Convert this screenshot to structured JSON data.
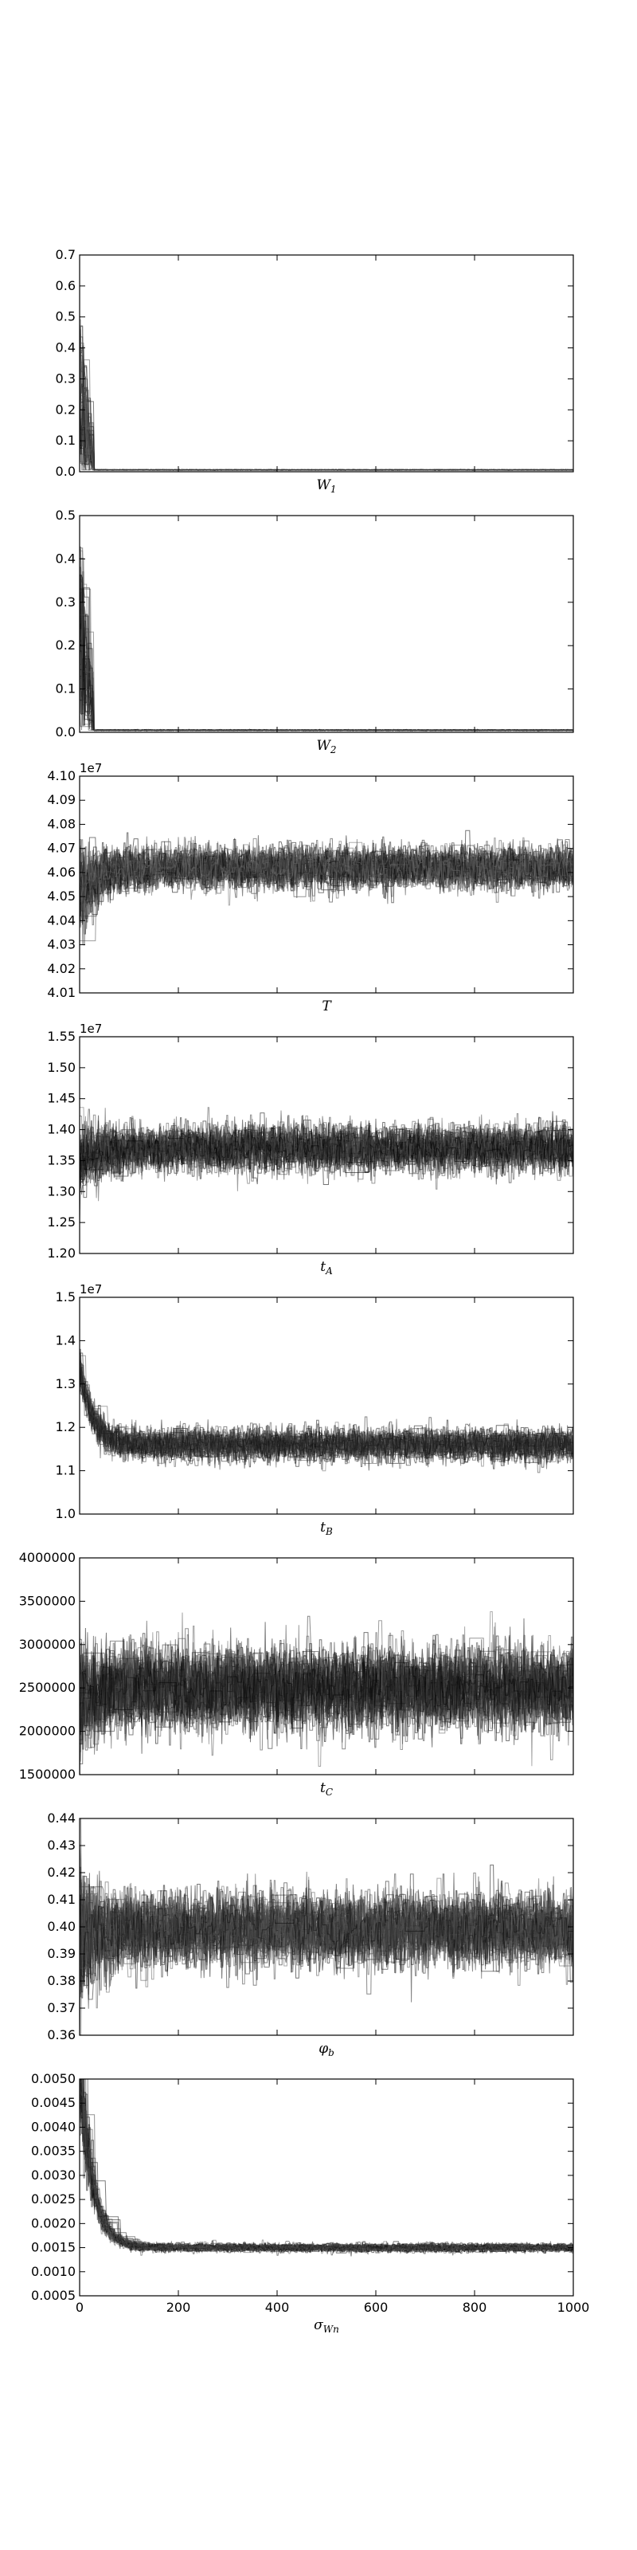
{
  "chart_data": [
    {
      "type": "line",
      "xlabel": "W1",
      "ylim": [
        0.0,
        0.7
      ],
      "yticks": [
        "0.0",
        "0.1",
        "0.2",
        "0.3",
        "0.4",
        "0.5",
        "0.6",
        "0.7"
      ],
      "offset": "",
      "xlim": [
        0,
        1000
      ],
      "pattern": "spike-decay",
      "steady": 0.006,
      "noise": 0.002,
      "early_max": 0.52,
      "early_len": 30,
      "series_count": 40
    },
    {
      "type": "line",
      "xlabel": "W2",
      "ylim": [
        0.0,
        0.5
      ],
      "yticks": [
        "0.0",
        "0.1",
        "0.2",
        "0.3",
        "0.4",
        "0.5"
      ],
      "offset": "",
      "xlim": [
        0,
        1000
      ],
      "pattern": "spike-decay",
      "steady": 0.005,
      "noise": 0.002,
      "early_max": 0.47,
      "early_len": 30,
      "series_count": 40
    },
    {
      "type": "line",
      "xlabel": "T",
      "ylim": [
        40100000,
        41000000
      ],
      "yticks": [
        "4.01",
        "4.02",
        "4.03",
        "4.04",
        "4.05",
        "4.06",
        "4.07",
        "4.08",
        "4.09",
        "4.10"
      ],
      "offset": "1e7",
      "xlim": [
        0,
        1000
      ],
      "pattern": "stationary",
      "center": 40620000,
      "spread": 120000,
      "start_center": 40520000,
      "start_spread": 250000,
      "series_count": 40
    },
    {
      "type": "line",
      "xlabel": "tA",
      "ylim": [
        12000000,
        15500000
      ],
      "yticks": [
        "1.20",
        "1.25",
        "1.30",
        "1.35",
        "1.40",
        "1.45",
        "1.50",
        "1.55"
      ],
      "offset": "1e7",
      "xlim": [
        0,
        1000
      ],
      "pattern": "stationary",
      "center": 13700000,
      "spread": 500000,
      "start_center": 13500000,
      "start_spread": 900000,
      "series_count": 40
    },
    {
      "type": "line",
      "xlabel": "tB",
      "ylim": [
        10000000,
        15000000
      ],
      "yticks": [
        "1.0",
        "1.1",
        "1.2",
        "1.3",
        "1.4",
        "1.5"
      ],
      "offset": "1e7",
      "xlim": [
        0,
        1000
      ],
      "pattern": "decay-stationary",
      "center": 11600000,
      "spread": 500000,
      "start_center": 13400000,
      "start_spread": 500000,
      "series_count": 40
    },
    {
      "type": "line",
      "xlabel": "tC",
      "ylim": [
        1500000,
        4000000
      ],
      "yticks": [
        "1500000",
        "2000000",
        "2500000",
        "3000000",
        "3500000",
        "4000000"
      ],
      "offset": "",
      "xlim": [
        0,
        1000
      ],
      "pattern": "stationary",
      "center": 2500000,
      "spread": 650000,
      "start_center": 2350000,
      "start_spread": 900000,
      "series_count": 40
    },
    {
      "type": "line",
      "xlabel": "φb",
      "ylim": [
        0.36,
        0.44
      ],
      "yticks": [
        "0.36",
        "0.37",
        "0.38",
        "0.39",
        "0.40",
        "0.41",
        "0.42",
        "0.43",
        "0.44"
      ],
      "offset": "",
      "xlim": [
        0,
        1000
      ],
      "pattern": "stationary",
      "center": 0.399,
      "spread": 0.018,
      "start_center": 0.395,
      "start_spread": 0.04,
      "series_count": 40
    },
    {
      "type": "line",
      "xlabel": "σWn",
      "ylim": [
        0.0005,
        0.005
      ],
      "yticks": [
        "0.0005",
        "0.0010",
        "0.0015",
        "0.0020",
        "0.0025",
        "0.0030",
        "0.0035",
        "0.0040",
        "0.0045",
        "0.0050"
      ],
      "xticks": [
        "0",
        "200",
        "400",
        "600",
        "800",
        "1000"
      ],
      "offset": "",
      "xlim": [
        0,
        1000
      ],
      "pattern": "decay-stationary",
      "center": 0.0015,
      "spread": 0.00012,
      "start_center": 0.0052,
      "start_spread": 0.0015,
      "series_count": 40
    }
  ]
}
